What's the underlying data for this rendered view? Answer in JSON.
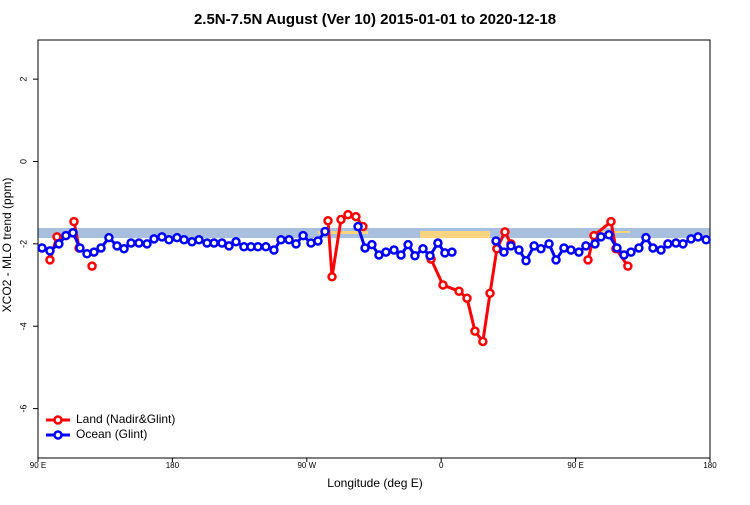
{
  "chart_data": {
    "type": "line",
    "title": "2.5N-7.5N August (Ver 10)   2015-01-01 to 2020-12-18",
    "x_label": "Longitude (deg E)",
    "y_label": "XCO2 - MLO trend (ppm)",
    "xlim": [
      90,
      540
    ],
    "ylim": [
      -7.2,
      2.95
    ],
    "xticks": [
      {
        "value": 90,
        "label": "90 E"
      },
      180,
      {
        "value": 270,
        "label": "90 W"
      },
      {
        "value": 360,
        "label": "0"
      },
      {
        "value": 450,
        "label": "90 E"
      },
      {
        "value": 540,
        "label": "180"
      }
    ],
    "yticks": [
      -6,
      -4,
      -2,
      0,
      2
    ],
    "legend": "bottom-left",
    "series": [
      {
        "name": "Land (Nadir&Glint)",
        "color": "#ff0000",
        "x": [
          98,
          102.7,
          null,
          114.1,
          117.5,
          null,
          126.2,
          null,
          284.2,
          286.9,
          292.9,
          297.6,
          302.9,
          307.6,
          null,
          353.2,
          361.2,
          371.9,
          377.3,
          382.6,
          387.9,
          392.7,
          397.3,
          402.7,
          406.7,
          null,
          458.3,
          462.3,
          473.7,
          477,
          485
        ],
        "values": [
          -2.39,
          -1.83,
          null,
          -1.46,
          -2.1,
          null,
          -2.54,
          null,
          -1.44,
          -2.8,
          -1.41,
          -1.29,
          -1.34,
          -1.58,
          null,
          -2.37,
          -3.0,
          -3.15,
          -3.32,
          -4.12,
          -4.37,
          -3.2,
          -2.12,
          -1.71,
          -2.0,
          null,
          -2.39,
          -1.8,
          -1.46,
          -2.12,
          -2.54
        ]
      },
      {
        "name": "Ocean (Glint)",
        "color": "#0000ff",
        "x": [
          92.7,
          98,
          104,
          108.7,
          113.4,
          118.1,
          122.8,
          127.5,
          132.2,
          137.5,
          142.9,
          147.6,
          152.3,
          157.6,
          163,
          167.7,
          173,
          177.7,
          183.1,
          187.8,
          193.1,
          197.8,
          203.2,
          207.9,
          213.2,
          217.9,
          222.6,
          227.9,
          232.6,
          237.3,
          242.6,
          248,
          252.7,
          258.1,
          262.8,
          267.5,
          272.8,
          277.5,
          282.2,
          null,
          304.3,
          309,
          313.6,
          318.3,
          323,
          328.4,
          333.1,
          337.8,
          342.4,
          347.8,
          352.5,
          357.8,
          362.5,
          367.2,
          null,
          396.7,
          402,
          406.7,
          412.1,
          416.8,
          422.2,
          426.8,
          432.2,
          436.9,
          442.2,
          446.9,
          452.2,
          456.9,
          463,
          467,
          472.3,
          477.7,
          482.4,
          487.1,
          492.4,
          497.1,
          501.8,
          507.2,
          511.8,
          517.2,
          521.9,
          527.3,
          532,
          537.4
        ],
        "values": [
          -2.1,
          -2.17,
          -2.0,
          -1.8,
          -1.73,
          -2.1,
          -2.24,
          -2.2,
          -2.1,
          -1.85,
          -2.05,
          -2.12,
          -1.98,
          -1.98,
          -2.0,
          -1.88,
          -1.83,
          -1.9,
          -1.85,
          -1.9,
          -1.95,
          -1.9,
          -1.98,
          -1.98,
          -1.98,
          -2.05,
          -1.95,
          -2.07,
          -2.07,
          -2.07,
          -2.07,
          -2.15,
          -1.9,
          -1.9,
          -2.0,
          -1.8,
          -1.98,
          -1.93,
          -1.7,
          null,
          -1.58,
          -2.1,
          -2.02,
          -2.27,
          -2.2,
          -2.15,
          -2.27,
          -2.02,
          -2.29,
          -2.12,
          -2.29,
          -1.98,
          -2.22,
          -2.2,
          null,
          -1.93,
          -2.2,
          -2.05,
          -2.15,
          -2.41,
          -2.05,
          -2.12,
          -2.0,
          -2.39,
          -2.1,
          -2.15,
          -2.2,
          -2.05,
          -2.0,
          -1.83,
          -1.78,
          -2.1,
          -2.27,
          -2.2,
          -2.1,
          -1.85,
          -2.1,
          -2.15,
          -2.0,
          -1.98,
          -2.0,
          -1.88,
          -1.83,
          -1.9
        ]
      }
    ]
  }
}
